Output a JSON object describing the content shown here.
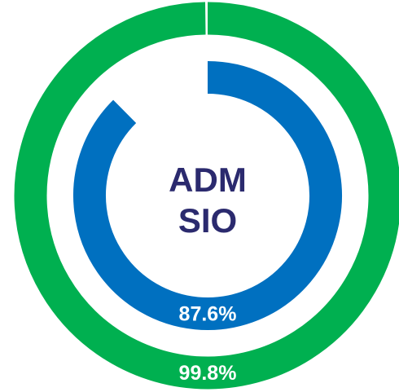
{
  "chart_data": {
    "type": "radial-progress",
    "title_lines": [
      "ADM",
      "SIO"
    ],
    "values": [
      99.8,
      87.6
    ],
    "value_labels": [
      "99.8%",
      "87.6%"
    ],
    "colors": [
      "#00b050",
      "#0070c0"
    ],
    "ylim": [
      0,
      100
    ]
  }
}
